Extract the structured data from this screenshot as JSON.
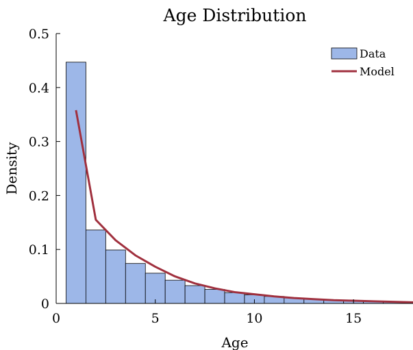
{
  "chart_data": {
    "type": "bar",
    "title": "Age Distribution",
    "xlabel": "Age",
    "ylabel": "Density",
    "xlim": [
      0,
      18
    ],
    "ylim": [
      0,
      0.5
    ],
    "xticks": [
      0,
      5,
      10,
      15
    ],
    "yticks": [
      0,
      0.1,
      0.2,
      0.3,
      0.4,
      0.5
    ],
    "xtick_labels": [
      "0",
      "5",
      "10",
      "15"
    ],
    "ytick_labels": [
      "0",
      "0.1",
      "0.2",
      "0.3",
      "0.4",
      "0.5"
    ],
    "grid": false,
    "legend_position": "top-right",
    "series": [
      {
        "name": "Data",
        "kind": "histogram",
        "color": "#9DB7E8",
        "bin_edges": [
          0.5,
          1.5,
          2.5,
          3.5,
          4.5,
          5.5,
          6.5,
          7.5,
          8.5,
          9.5,
          10.5,
          11.5,
          12.5,
          13.5,
          14.5,
          15.5,
          16.5,
          17.5,
          18.5
        ],
        "values": [
          0.447,
          0.136,
          0.099,
          0.074,
          0.056,
          0.043,
          0.033,
          0.026,
          0.02,
          0.016,
          0.013,
          0.01,
          0.008,
          0.006,
          0.005,
          0.004,
          0.003,
          0.002
        ]
      },
      {
        "name": "Model",
        "kind": "line",
        "color": "#A0303E",
        "x": [
          1,
          2,
          3,
          4,
          5,
          6,
          7,
          8,
          9,
          10,
          11,
          12,
          13,
          14,
          15,
          16,
          17,
          18
        ],
        "values": [
          0.358,
          0.155,
          0.117,
          0.089,
          0.068,
          0.05,
          0.037,
          0.028,
          0.021,
          0.017,
          0.013,
          0.01,
          0.008,
          0.006,
          0.005,
          0.004,
          0.003,
          0.002
        ]
      }
    ]
  }
}
